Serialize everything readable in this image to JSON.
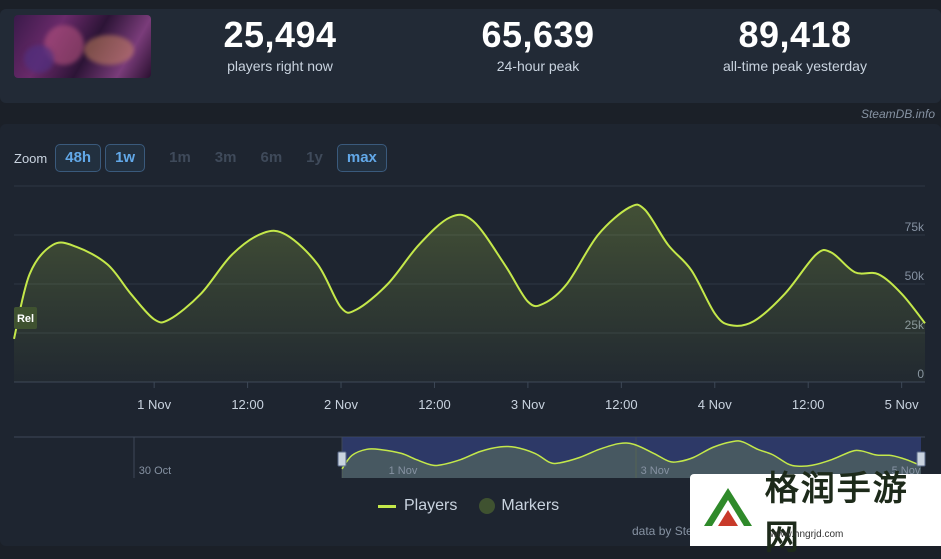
{
  "header": {
    "game_thumbnail_alt": "Dragon Age",
    "stats": [
      {
        "value": "25,494",
        "label": "players right now"
      },
      {
        "value": "65,639",
        "label": "24-hour peak"
      },
      {
        "value": "89,418",
        "label": "all-time peak yesterday"
      }
    ],
    "credit": "SteamDB.info"
  },
  "zoom": {
    "label": "Zoom",
    "options": [
      "48h",
      "1w",
      "1m",
      "3m",
      "6m",
      "1y",
      "max"
    ],
    "active": [
      "48h",
      "1w",
      "max"
    ]
  },
  "chart_data": {
    "type": "line",
    "series": [
      {
        "name": "Players",
        "color": "#c4e84a"
      }
    ],
    "x_ticks": [
      "1 Nov",
      "12:00",
      "2 Nov",
      "12:00",
      "3 Nov",
      "12:00",
      "4 Nov",
      "12:00",
      "5 Nov"
    ],
    "y_ticks": [
      "75k",
      "50k",
      "25k",
      "0"
    ],
    "ylim": [
      0,
      100000
    ],
    "values": [
      [
        "31 Oct 06:00",
        22000
      ],
      [
        "31 Oct 08:00",
        55000
      ],
      [
        "31 Oct 11:00",
        70000
      ],
      [
        "31 Oct 14:00",
        69000
      ],
      [
        "31 Oct 18:00",
        60000
      ],
      [
        "31 Oct 21:00",
        45000
      ],
      [
        "1 Nov 00:00",
        32000
      ],
      [
        "1 Nov 02:00",
        32000
      ],
      [
        "1 Nov 06:00",
        45000
      ],
      [
        "1 Nov 10:00",
        65000
      ],
      [
        "1 Nov 14:00",
        76000
      ],
      [
        "1 Nov 17:00",
        75000
      ],
      [
        "1 Nov 21:00",
        60000
      ],
      [
        "2 Nov 00:00",
        38000
      ],
      [
        "2 Nov 02:00",
        37000
      ],
      [
        "2 Nov 06:00",
        50000
      ],
      [
        "2 Nov 10:00",
        70000
      ],
      [
        "2 Nov 14:00",
        84000
      ],
      [
        "2 Nov 17:00",
        82000
      ],
      [
        "2 Nov 21:00",
        60000
      ],
      [
        "3 Nov 00:00",
        41000
      ],
      [
        "3 Nov 02:00",
        40000
      ],
      [
        "3 Nov 05:00",
        50000
      ],
      [
        "3 Nov 09:00",
        75000
      ],
      [
        "3 Nov 13:00",
        89000
      ],
      [
        "3 Nov 15:00",
        88000
      ],
      [
        "3 Nov 18:00",
        70000
      ],
      [
        "3 Nov 21:00",
        57000
      ],
      [
        "4 Nov 00:00",
        35000
      ],
      [
        "4 Nov 02:00",
        29000
      ],
      [
        "4 Nov 05:00",
        31000
      ],
      [
        "4 Nov 09:00",
        45000
      ],
      [
        "4 Nov 13:00",
        65000
      ],
      [
        "4 Nov 15:00",
        66000
      ],
      [
        "4 Nov 18:00",
        56000
      ],
      [
        "4 Nov 21:00",
        55000
      ],
      [
        "5 Nov 00:00",
        45000
      ],
      [
        "5 Nov 03:00",
        30000
      ]
    ],
    "marker_label": "Rel",
    "navigator_labels": [
      "30 Oct",
      "1 Nov",
      "3 Nov",
      "5 Nov"
    ]
  },
  "legend": {
    "players": "Players",
    "markers": "Markers"
  },
  "credit_bottom": "data by Ste",
  "watermark": {
    "text": "格润手游网",
    "sub": "www.hngrjd.com"
  }
}
